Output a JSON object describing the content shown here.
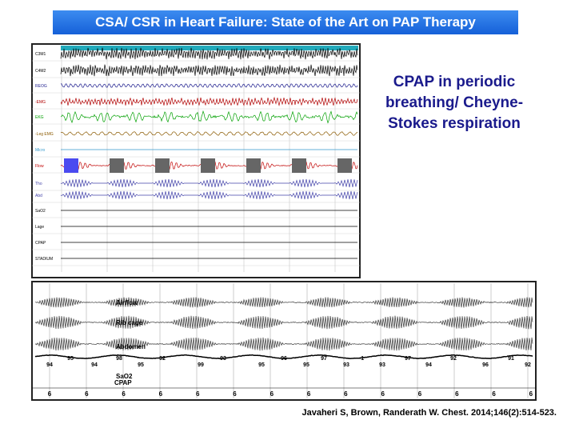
{
  "header": {
    "title": "CSA/ CSR in Heart Failure: State of the Art on PAP Therapy"
  },
  "side_text": "CPAP in periodic breathing/ Cheyne-Stokes respiration",
  "upper_figure": {
    "channels": [
      "C3M1",
      "C4M2",
      "REOG",
      "-EMG",
      "EKG",
      "-Leg EMG",
      "Micro",
      "Flow",
      "Tho",
      "Abd",
      "SaO2",
      "Lage",
      "CPAP",
      "STADIUM"
    ]
  },
  "lower_figure": {
    "labels": {
      "airflow": "Airflow",
      "rib_cage": "Rib cage",
      "abdomen": "Abdomen",
      "sao2": "SaO2",
      "cpap": "CPAP"
    },
    "sao2_values": [
      94,
      95,
      94,
      98,
      95,
      92,
      99,
      93,
      95,
      96,
      95,
      97,
      93,
      -1,
      93,
      97,
      94,
      92,
      96,
      91,
      92
    ],
    "cpap_values": [
      6,
      6,
      6,
      6,
      6,
      6,
      6,
      6,
      6,
      6,
      6,
      6,
      6,
      6
    ]
  },
  "citation": "Javaheri S, Brown, Randerath W. Chest. 2014;146(2):514-523."
}
